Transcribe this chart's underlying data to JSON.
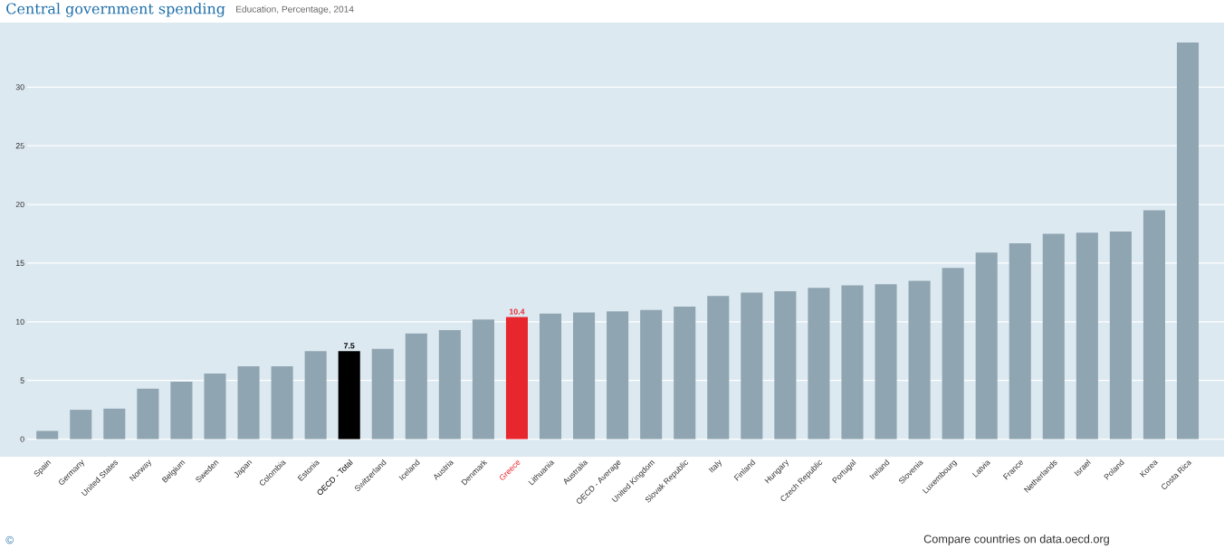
{
  "chart_data": {
    "type": "bar",
    "title": "Central government spending",
    "subtitle": "Education, Percentage, 2014",
    "categories": [
      "Spain",
      "Germany",
      "United States",
      "Norway",
      "Belgium",
      "Sweden",
      "Japan",
      "Colombia",
      "Estonia",
      "OECD - Total",
      "Switzerland",
      "Iceland",
      "Austria",
      "Denmark",
      "Greece",
      "Lithuania",
      "Australia",
      "OECD - Average",
      "United Kingdom",
      "Slovak Republic",
      "Italy",
      "Finland",
      "Hungary",
      "Czech Republic",
      "Portugal",
      "Ireland",
      "Slovenia",
      "Luxembourg",
      "Latvia",
      "France",
      "Netherlands",
      "Israel",
      "Poland",
      "Korea",
      "Costa Rica"
    ],
    "values": [
      0.7,
      2.5,
      2.6,
      4.3,
      4.9,
      5.6,
      6.2,
      6.2,
      7.5,
      7.5,
      7.7,
      9.0,
      9.3,
      10.2,
      10.4,
      10.7,
      10.8,
      10.9,
      11.0,
      11.3,
      12.2,
      12.5,
      12.6,
      12.9,
      13.1,
      13.2,
      13.5,
      14.6,
      15.9,
      16.7,
      17.5,
      17.6,
      17.7,
      19.5,
      33.8
    ],
    "colors": [
      "#8fa5b1",
      "#8fa5b1",
      "#8fa5b1",
      "#8fa5b1",
      "#8fa5b1",
      "#8fa5b1",
      "#8fa5b1",
      "#8fa5b1",
      "#8fa5b1",
      "#000000",
      "#8fa5b1",
      "#8fa5b1",
      "#8fa5b1",
      "#8fa5b1",
      "#e8262e",
      "#8fa5b1",
      "#8fa5b1",
      "#8fa5b1",
      "#8fa5b1",
      "#8fa5b1",
      "#8fa5b1",
      "#8fa5b1",
      "#8fa5b1",
      "#8fa5b1",
      "#8fa5b1",
      "#8fa5b1",
      "#8fa5b1",
      "#8fa5b1",
      "#8fa5b1",
      "#8fa5b1",
      "#8fa5b1",
      "#8fa5b1",
      "#8fa5b1",
      "#8fa5b1",
      "#8fa5b1"
    ],
    "value_labels": [
      null,
      null,
      null,
      null,
      null,
      null,
      null,
      null,
      null,
      "7.5",
      null,
      null,
      null,
      null,
      "10.4",
      null,
      null,
      null,
      null,
      null,
      null,
      null,
      null,
      null,
      null,
      null,
      null,
      null,
      null,
      null,
      null,
      null,
      null,
      null,
      null
    ],
    "ylim": [
      -1.5,
      35.5
    ],
    "yticks": [
      0,
      5,
      10,
      15,
      20,
      25,
      30
    ],
    "grid": "y",
    "annotations": [
      "©",
      "Compare countries on data.oecd.org"
    ]
  }
}
